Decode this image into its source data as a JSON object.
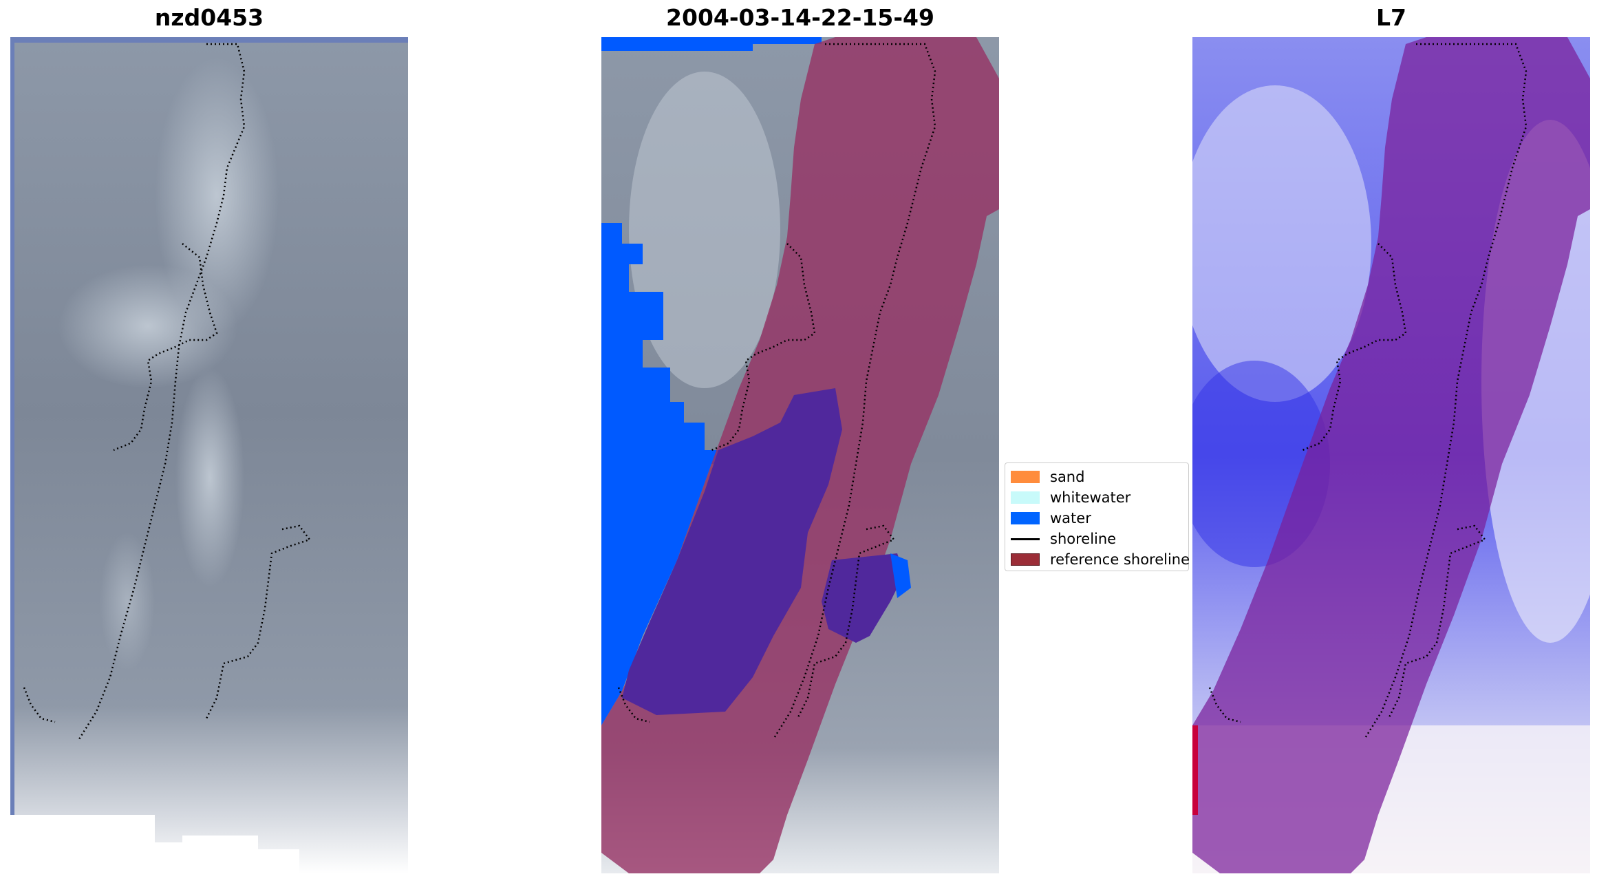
{
  "panels": [
    {
      "title": "nzd0453"
    },
    {
      "title": "2004-03-14-22-15-49"
    },
    {
      "title": "L7"
    }
  ],
  "legend": {
    "items": [
      {
        "label": "sand",
        "color": "#ff8c3c",
        "kind": "patch"
      },
      {
        "label": "whitewater",
        "color": "#c8fafa",
        "kind": "patch"
      },
      {
        "label": "water",
        "color": "#0064ff",
        "kind": "patch"
      },
      {
        "label": "shoreline",
        "color": "#000000",
        "kind": "line"
      },
      {
        "label": "reference shoreline",
        "color": "#9b2d37",
        "kind": "patch"
      }
    ]
  },
  "colors": {
    "cloud_gray": "#8a96a6",
    "water_mask": "#005aff",
    "reference_buffer": "#963264",
    "index_blue": "#3c3cf0",
    "index_white": "#f4f4fb"
  }
}
